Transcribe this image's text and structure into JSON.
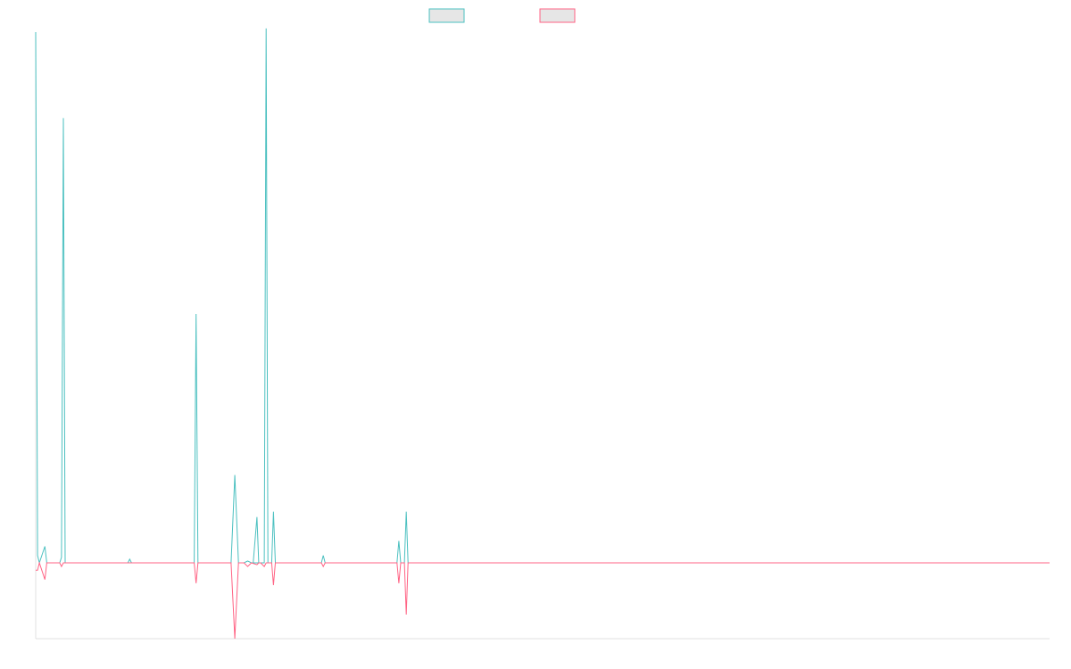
{
  "chart_data": {
    "type": "line",
    "title": "",
    "xlabel": "",
    "ylabel": "",
    "grid": false,
    "legend_position": "top-center",
    "x": [
      0,
      1,
      2,
      3,
      4,
      5,
      6,
      7,
      8,
      9,
      10,
      11,
      12,
      13,
      14,
      15,
      16,
      17,
      18,
      19,
      20,
      21,
      22,
      23,
      24,
      25,
      26,
      27,
      28,
      29,
      30,
      31,
      32,
      33,
      34,
      35,
      36,
      37,
      38,
      39,
      40,
      41,
      42,
      43,
      44,
      45,
      46,
      47,
      48,
      49,
      50,
      51,
      52,
      53,
      54,
      55,
      56,
      57,
      58,
      59,
      60,
      61,
      62,
      63,
      64,
      65,
      66,
      67,
      68,
      69,
      70,
      71,
      72,
      73,
      74,
      75,
      76,
      77,
      78,
      79,
      80,
      81,
      82,
      83,
      84,
      85,
      86,
      87,
      88,
      89,
      90,
      91,
      92,
      93,
      94,
      95,
      96,
      97,
      98,
      99,
      100,
      101,
      102,
      103,
      104,
      105,
      106,
      107,
      108,
      109,
      110,
      111,
      112,
      113,
      114,
      115,
      116,
      117,
      118,
      119,
      120,
      121,
      122,
      123,
      124,
      125,
      126,
      127,
      128,
      129,
      130,
      131,
      132,
      133,
      134,
      135,
      136,
      137,
      138,
      139,
      140,
      141,
      142,
      143,
      144,
      145,
      146,
      147,
      148,
      149,
      150,
      151,
      152,
      153,
      154,
      155,
      156,
      157,
      158,
      159,
      160,
      161,
      162,
      163,
      164,
      165,
      166,
      167,
      168,
      169,
      170,
      171,
      172,
      173,
      174,
      175,
      176,
      177,
      178,
      179,
      180,
      181,
      182,
      183,
      184,
      185,
      186,
      187,
      188,
      189,
      190,
      191,
      192,
      193,
      194,
      195,
      196,
      197,
      198,
      199,
      200,
      201,
      202,
      203,
      204,
      205,
      206,
      207,
      208,
      209,
      210,
      211,
      212,
      213,
      214,
      215,
      216,
      217,
      218,
      219,
      220,
      221,
      222,
      223,
      224,
      225,
      226,
      227,
      228,
      229,
      230,
      231,
      232,
      233,
      234,
      235,
      236,
      237,
      238,
      239,
      240,
      241,
      242,
      243,
      244,
      245,
      246,
      247,
      248,
      249,
      250,
      251,
      252,
      253,
      254,
      255,
      256,
      257,
      258,
      259,
      260,
      261,
      262,
      263,
      264,
      265,
      266,
      267,
      268,
      269,
      270,
      271,
      272,
      273,
      274,
      275,
      276,
      277,
      278,
      279,
      280,
      281,
      282,
      283,
      284,
      285,
      286,
      287,
      288,
      289,
      290,
      291,
      292,
      293,
      294,
      295,
      296,
      297,
      298,
      299,
      300,
      301,
      302,
      303,
      304,
      305,
      306,
      307,
      308,
      309,
      310,
      311,
      312,
      313,
      314,
      315,
      316,
      317,
      318,
      319,
      320,
      321,
      322,
      323,
      324,
      325,
      326,
      327,
      328,
      329,
      330,
      331,
      332,
      333,
      334,
      335,
      336,
      337,
      338,
      339,
      340,
      341,
      342,
      343,
      344,
      345,
      346,
      347,
      348,
      349,
      350,
      351,
      352,
      353,
      354,
      355,
      356,
      357,
      358,
      359,
      360,
      361,
      362,
      363,
      364,
      365,
      366,
      367,
      368,
      369,
      370,
      371,
      372,
      373,
      374,
      375,
      376,
      377,
      378,
      379,
      380,
      381,
      382,
      383,
      384,
      385,
      386,
      387,
      388,
      389,
      390,
      391,
      392,
      393,
      394,
      395,
      396,
      397,
      398,
      399,
      400,
      401,
      402,
      403,
      404,
      405,
      406,
      407,
      408,
      409,
      410,
      411,
      412,
      413,
      414,
      415,
      416,
      417,
      418,
      419,
      420,
      421,
      422,
      423,
      424,
      425,
      426,
      427,
      428,
      429,
      430,
      431,
      432,
      433,
      434,
      435,
      436,
      437,
      438,
      439,
      440,
      441,
      442,
      443,
      444,
      445,
      446,
      447,
      448,
      449,
      450,
      451,
      452,
      453,
      454,
      455,
      456,
      457,
      458,
      459,
      460,
      461,
      462,
      463,
      464,
      465,
      466,
      467,
      468,
      469,
      470,
      471,
      472,
      473,
      474,
      475,
      476,
      477,
      478,
      479,
      480,
      481,
      482,
      483,
      484,
      485,
      486,
      487,
      488,
      489,
      490,
      491,
      492,
      493,
      494,
      495,
      496,
      497,
      498,
      499,
      500,
      501,
      502,
      503,
      504,
      505,
      506,
      507,
      508,
      509,
      510,
      511,
      512,
      513,
      514,
      515,
      516,
      517,
      518,
      519,
      520,
      521,
      522,
      523,
      524,
      525,
      526,
      527,
      528,
      529,
      530,
      531,
      532,
      533,
      534,
      535,
      536,
      537,
      538,
      539,
      540,
      541,
      542,
      543,
      544,
      545,
      546,
      547,
      548,
      549,
      550
    ],
    "xlim": [
      0,
      550
    ],
    "ylim": [
      -41,
      290
    ],
    "series": [
      {
        "color": "#4bc0c0",
        "points": [
          [
            0,
            290
          ],
          [
            1,
            4
          ],
          [
            2,
            0
          ],
          [
            5,
            9
          ],
          [
            6,
            0
          ],
          [
            13,
            0
          ],
          [
            14,
            3
          ],
          [
            15,
            243
          ],
          [
            16,
            0
          ],
          [
            50,
            0
          ],
          [
            51,
            2
          ],
          [
            52,
            0
          ],
          [
            86,
            0
          ],
          [
            87,
            136
          ],
          [
            88,
            0
          ],
          [
            106,
            0
          ],
          [
            108,
            48
          ],
          [
            110,
            0
          ],
          [
            113,
            0
          ],
          [
            115,
            1
          ],
          [
            117,
            0
          ],
          [
            118,
            0
          ],
          [
            120,
            25
          ],
          [
            121,
            0
          ],
          [
            118,
            0
          ],
          [
            119,
            0
          ],
          [
            122,
            0
          ],
          [
            124,
            0
          ],
          [
            125,
            292
          ],
          [
            126,
            0
          ],
          [
            128,
            0
          ],
          [
            129,
            28
          ],
          [
            130,
            0
          ],
          [
            155,
            0
          ],
          [
            156,
            4
          ],
          [
            157,
            0
          ],
          [
            196,
            0
          ],
          [
            197,
            12
          ],
          [
            198,
            0
          ],
          [
            200,
            0
          ],
          [
            201,
            28
          ],
          [
            202,
            0
          ],
          [
            550,
            0
          ]
        ]
      },
      {
        "color": "#ff6384",
        "points": [
          [
            0,
            -4
          ],
          [
            1,
            -4
          ],
          [
            2,
            0
          ],
          [
            5,
            -9
          ],
          [
            6,
            0
          ],
          [
            13,
            0
          ],
          [
            14,
            -2
          ],
          [
            15,
            0
          ],
          [
            50,
            0
          ],
          [
            86,
            0
          ],
          [
            87,
            -11
          ],
          [
            88,
            0
          ],
          [
            106,
            0
          ],
          [
            108,
            -41
          ],
          [
            110,
            0
          ],
          [
            113,
            0
          ],
          [
            115,
            -2
          ],
          [
            117,
            0
          ],
          [
            120,
            -1
          ],
          [
            121,
            0
          ],
          [
            122,
            0
          ],
          [
            124,
            -2
          ],
          [
            125,
            0
          ],
          [
            128,
            0
          ],
          [
            129,
            -12
          ],
          [
            130,
            0
          ],
          [
            155,
            0
          ],
          [
            156,
            -2
          ],
          [
            157,
            0
          ],
          [
            196,
            0
          ],
          [
            197,
            -11
          ],
          [
            198,
            0
          ],
          [
            200,
            0
          ],
          [
            201,
            -28
          ],
          [
            202,
            0
          ],
          [
            550,
            0
          ]
        ]
      }
    ]
  }
}
